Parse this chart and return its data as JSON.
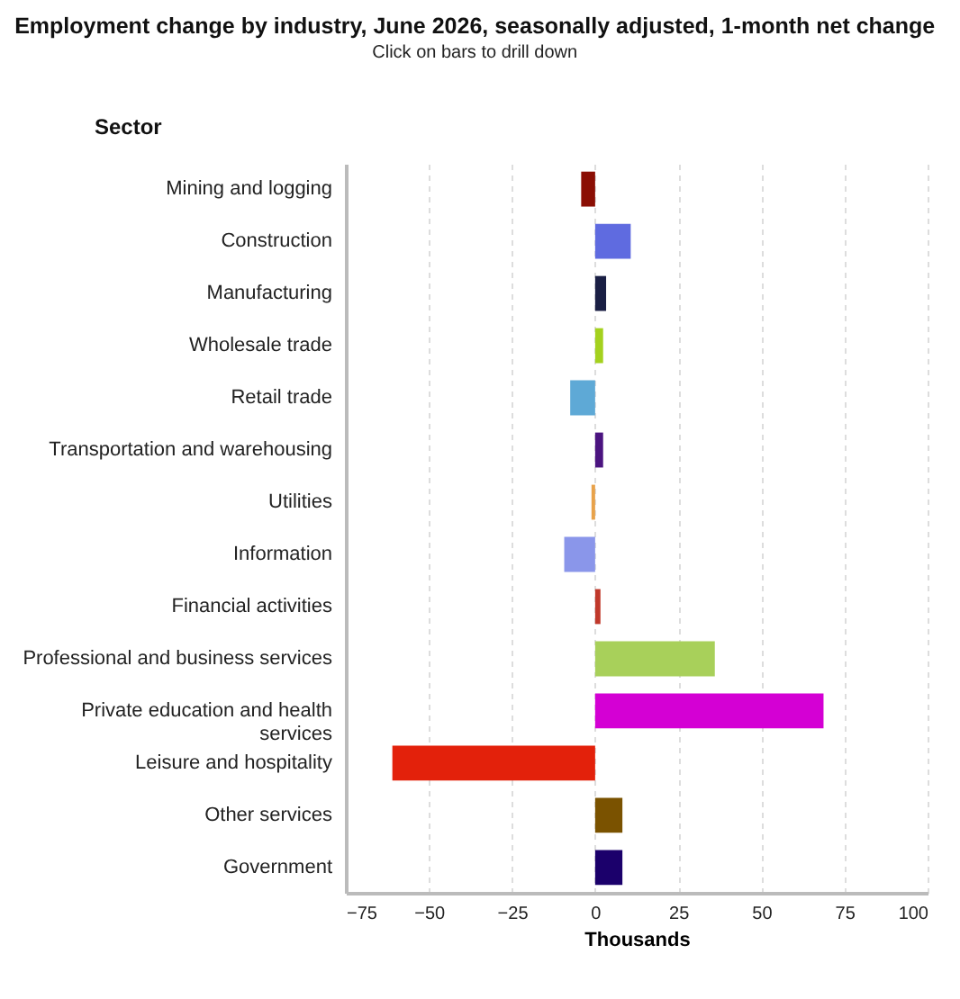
{
  "chart_data": {
    "type": "bar",
    "orientation": "horizontal",
    "title": "Employment change by industry, June 2026, seasonally adjusted, 1-month net change",
    "subtitle": "Click on bars to drill down",
    "ylabel": "Sector",
    "xlabel": "Thousands",
    "categories": [
      "Mining and logging",
      "Construction",
      "Manufacturing",
      "Wholesale trade",
      "Retail trade",
      "Transportation and warehousing",
      "Utilities",
      "Information",
      "Financial activities",
      "Professional and business services",
      "Private education and health services",
      "Leisure and hospitality",
      "Other services",
      "Government"
    ],
    "values": [
      -4.2,
      10.7,
      3.3,
      2.4,
      -7.5,
      2.4,
      -1.1,
      -9.3,
      1.6,
      36,
      68.7,
      -61,
      8.2,
      8.2
    ],
    "colors": [
      "#8b0e04",
      "#5f6be0",
      "#1a1f44",
      "#a4d11e",
      "#5ea9d6",
      "#4b1480",
      "#e8a24a",
      "#8a96ea",
      "#c0392b",
      "#a8d05a",
      "#d400d4",
      "#e3210b",
      "#7a5200",
      "#1b006b"
    ],
    "xlim": [
      -75,
      100
    ],
    "xticks": [
      -75,
      -50,
      -25,
      0,
      25,
      50,
      75,
      100
    ],
    "grid": "x"
  }
}
